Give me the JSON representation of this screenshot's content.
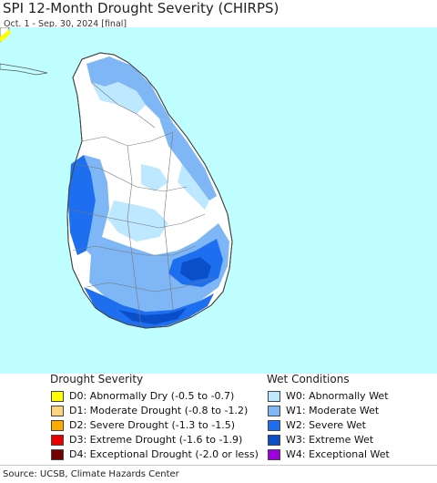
{
  "header": {
    "title": "SPI 12-Month Drought Severity (CHIRPS)",
    "subtitle": "Oct. 1 - Sep. 30, 2024 [final]"
  },
  "map": {
    "ocean_color": "#bfffff",
    "land_outline_color": "#555555",
    "region": "Sri Lanka"
  },
  "legend": {
    "drought": {
      "title": "Drought Severity",
      "items": [
        {
          "label": "D0: Abnormally Dry (-0.5 to -0.7)",
          "color": "#ffff00"
        },
        {
          "label": "D1: Moderate Drought (-0.8 to -1.2)",
          "color": "#fcd37f"
        },
        {
          "label": "D2: Severe Drought (-1.3 to -1.5)",
          "color": "#ffaa00"
        },
        {
          "label": "D3: Extreme Drought (-1.6 to -1.9)",
          "color": "#e60000"
        },
        {
          "label": "D4: Exceptional Drought (-2.0 or less)",
          "color": "#730000"
        }
      ]
    },
    "wet": {
      "title": "Wet Conditions",
      "items": [
        {
          "label": "W0: Abnormally Wet",
          "color": "#bde8ff"
        },
        {
          "label": "W1: Moderate Wet",
          "color": "#7fb6f5"
        },
        {
          "label": "W2: Severe Wet",
          "color": "#1e6ff0"
        },
        {
          "label": "W3: Extreme Wet",
          "color": "#0a4fc8"
        },
        {
          "label": "W4: Exceptional Wet",
          "color": "#a000e0"
        }
      ]
    }
  },
  "footer": {
    "source": "Source: UCSB, Climate Hazards Center"
  }
}
